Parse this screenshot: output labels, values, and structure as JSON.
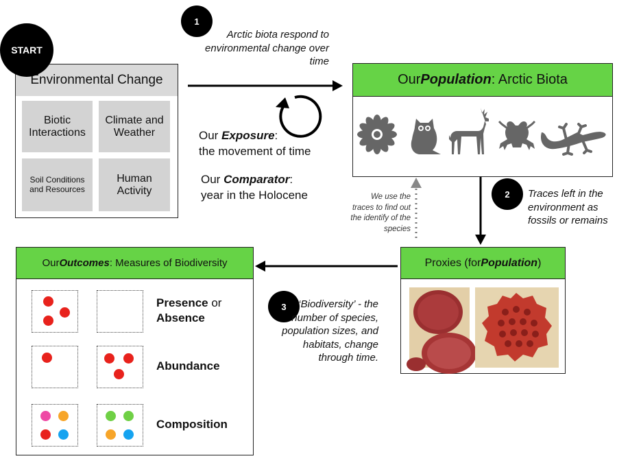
{
  "start": {
    "label": "START"
  },
  "env": {
    "title": "Environmental Change",
    "cells": [
      "Biotic\nInteractions",
      "Climate and\nWeather",
      "Soil Conditions\nand Resources",
      "Human\nActivity"
    ]
  },
  "steps": {
    "one": {
      "num": "1",
      "text": "Arctic biota respond to environmental change over time"
    },
    "two": {
      "num": "2",
      "text": "Traces left in the environment as fossils or remains"
    },
    "three": {
      "num": "3",
      "text_em": "‘Biodiversity’",
      "text_rest": " - the number of species, population sizes, and habitats, change through time."
    }
  },
  "exposure": {
    "prefix": "Our ",
    "em": "Exposure",
    "suffix": ":",
    "desc": "the movement of time"
  },
  "comparator": {
    "prefix": "Our ",
    "em": "Comparator",
    "suffix": ":",
    "desc": "year in the Holocene"
  },
  "population": {
    "prefix": "Our ",
    "em": "Population",
    "suffix": ": Arctic Biota"
  },
  "trace_note": "We use the traces to find out the identify of the species",
  "proxies": {
    "prefix": "Proxies (for ",
    "em": "Population",
    "suffix": ")"
  },
  "outcomes": {
    "prefix": "Our ",
    "em": "Outcomes",
    "suffix": ": Measures of Biodiversity",
    "presence": "Presence",
    "presence_or": " or",
    "absence": "Absence",
    "abundance": "Abundance",
    "composition": "Composition"
  },
  "colors": {
    "green": "#66d346",
    "red": "#e8221c",
    "pink": "#ee4aa5",
    "orange": "#f7a529",
    "blue": "#15a3f0",
    "lime": "#6fd045",
    "silhouette": "#666666"
  },
  "icons": [
    "flower-icon",
    "owl-icon",
    "deer-icon",
    "frog-icon",
    "lizard-icon",
    "cycle-arrow-icon"
  ]
}
